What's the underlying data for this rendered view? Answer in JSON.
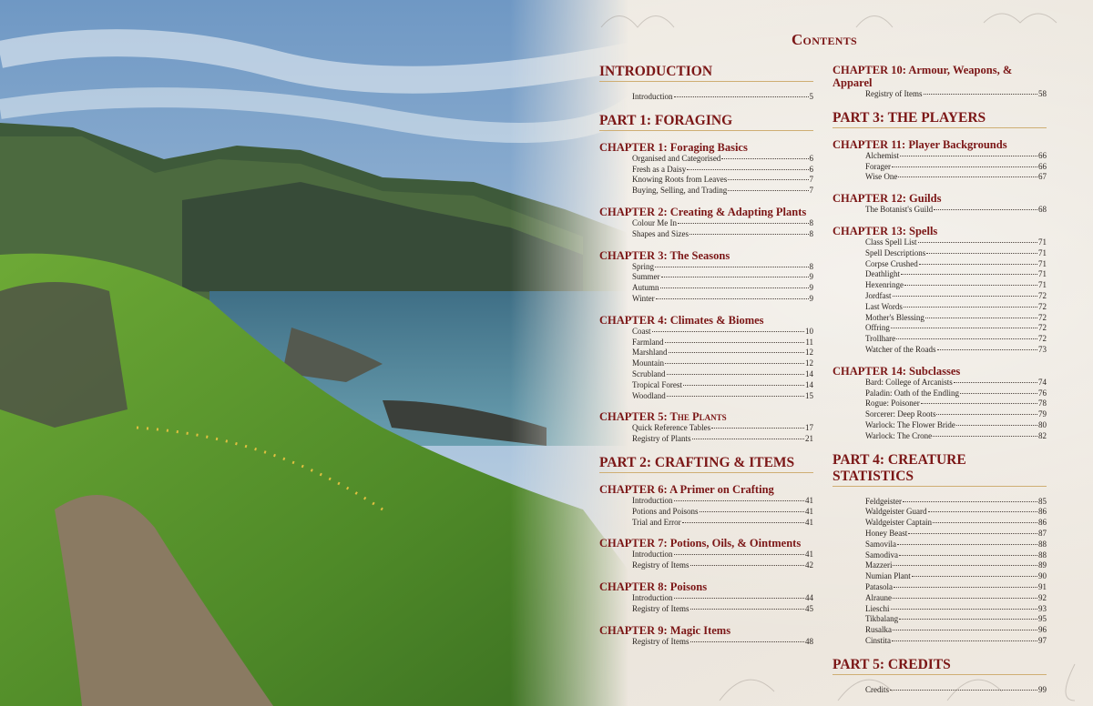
{
  "title": "Contents",
  "columns": [
    [
      {
        "type": "part",
        "title": "INTRODUCTION",
        "entries": [
          {
            "label": "Introduction",
            "page": "5"
          }
        ]
      },
      {
        "type": "part",
        "title": "PART 1: FORAGING",
        "entries": []
      },
      {
        "type": "chapter",
        "title": "CHAPTER 1: Foraging Basics",
        "entries": [
          {
            "label": "Organised and Categorised",
            "page": "6"
          },
          {
            "label": "Fresh as a Daisy",
            "page": "6"
          },
          {
            "label": "Knowing Roots from Leaves",
            "page": "7"
          },
          {
            "label": "Buying, Selling, and Trading",
            "page": "7"
          }
        ]
      },
      {
        "type": "chapter",
        "title": "CHAPTER 2: Creating & Adapting Plants",
        "entries": [
          {
            "label": "Colour Me In",
            "page": "8"
          },
          {
            "label": "Shapes and Sizes",
            "page": "8"
          }
        ]
      },
      {
        "type": "chapter",
        "title": "CHAPTER 3: The Seasons",
        "entries": [
          {
            "label": "Spring",
            "page": "8"
          },
          {
            "label": "Summer",
            "page": "9"
          },
          {
            "label": "Autumn",
            "page": "9"
          },
          {
            "label": "Winter",
            "page": "9"
          }
        ]
      },
      {
        "type": "chapter",
        "title": "CHAPTER 4: Climates & Biomes",
        "entries": [
          {
            "label": "Coast",
            "page": "10"
          },
          {
            "label": "Farmland",
            "page": "11"
          },
          {
            "label": "Marshland",
            "page": "12"
          },
          {
            "label": "Mountain",
            "page": "12"
          },
          {
            "label": "Scrubland",
            "page": "14"
          },
          {
            "label": "Tropical Forest",
            "page": "14"
          },
          {
            "label": "Woodland",
            "page": "15"
          }
        ]
      },
      {
        "type": "chapter",
        "smallcaps": true,
        "title": "CHAPTER 5: The Plants",
        "entries": [
          {
            "label": "Quick Reference Tables",
            "page": "17"
          },
          {
            "label": "Registry of Plants",
            "page": "21"
          }
        ]
      },
      {
        "type": "part",
        "title": "PART 2: CRAFTING & ITEMS",
        "entries": []
      },
      {
        "type": "chapter",
        "title": "CHAPTER 6: A Primer on Crafting",
        "entries": [
          {
            "label": "Introduction",
            "page": "41"
          },
          {
            "label": "Potions and Poisons",
            "page": "41"
          },
          {
            "label": "Trial and Error",
            "page": "41"
          }
        ]
      },
      {
        "type": "chapter",
        "title": "CHAPTER 7: Potions, Oils, & Ointments",
        "entries": [
          {
            "label": "Introduction",
            "page": "41"
          },
          {
            "label": "Registry of Items",
            "page": "42"
          }
        ]
      },
      {
        "type": "chapter",
        "title": "CHAPTER 8: Poisons",
        "entries": [
          {
            "label": "Introduction",
            "page": "44"
          },
          {
            "label": "Registry of Items",
            "page": "45"
          }
        ]
      },
      {
        "type": "chapter",
        "title": "CHAPTER 9: Magic Items",
        "entries": [
          {
            "label": "Registry of Items",
            "page": "48"
          }
        ]
      }
    ],
    [
      {
        "type": "chapter",
        "title": "CHAPTER 10: Armour, Weapons, & Apparel",
        "entries": [
          {
            "label": "Registry of Items",
            "page": "58"
          }
        ]
      },
      {
        "type": "part",
        "title": "PART 3: THE PLAYERS",
        "entries": []
      },
      {
        "type": "chapter",
        "title": "CHAPTER 11: Player Backgrounds",
        "entries": [
          {
            "label": "Alchemist",
            "page": "66"
          },
          {
            "label": "Forager",
            "page": "66"
          },
          {
            "label": "Wise One",
            "page": "67"
          }
        ]
      },
      {
        "type": "chapter",
        "title": "CHAPTER 12: Guilds",
        "entries": [
          {
            "label": "The Botanist's Guild",
            "page": "68"
          }
        ]
      },
      {
        "type": "chapter",
        "title": "CHAPTER 13: Spells",
        "entries": [
          {
            "label": "Class Spell List",
            "page": "71"
          },
          {
            "label": "Spell Descriptions",
            "page": "71"
          },
          {
            "label": "Corpse Crushed",
            "page": "71"
          },
          {
            "label": "Deathlight",
            "page": "71"
          },
          {
            "label": "Hexenringe",
            "page": "71"
          },
          {
            "label": "Jordfast",
            "page": "72"
          },
          {
            "label": "Last Words",
            "page": "72"
          },
          {
            "label": "Mother's Blessing",
            "page": "72"
          },
          {
            "label": "Offring",
            "page": "72"
          },
          {
            "label": "Trollhare",
            "page": "72"
          },
          {
            "label": "Watcher of the Roads",
            "page": "73"
          }
        ]
      },
      {
        "type": "chapter",
        "title": "CHAPTER 14: Subclasses",
        "entries": [
          {
            "label": "Bard: College of Arcanists",
            "page": "74"
          },
          {
            "label": "Paladin: Oath of the Endling",
            "page": "76"
          },
          {
            "label": "Rogue: Poisoner",
            "page": "78"
          },
          {
            "label": "Sorcerer: Deep Roots",
            "page": "79"
          },
          {
            "label": "Warlock: The Flower Bride",
            "page": "80"
          },
          {
            "label": "Warlock: The Crone",
            "page": "82"
          }
        ]
      },
      {
        "type": "part",
        "title": "PART 4: CREATURE STATISTICS",
        "entries": [
          {
            "label": "Feldgeister",
            "page": "85"
          },
          {
            "label": "Waldgeister Guard",
            "page": "86"
          },
          {
            "label": "Waldgeister Captain",
            "page": "86"
          },
          {
            "label": "Honey Beast",
            "page": "87"
          },
          {
            "label": "Samovila",
            "page": "88"
          },
          {
            "label": "Samodiva",
            "page": "88"
          },
          {
            "label": "Mazzeri",
            "page": "89"
          },
          {
            "label": "Numian Plant",
            "page": "90"
          },
          {
            "label": "Patasola",
            "page": "91"
          },
          {
            "label": "Alraune",
            "page": "92"
          },
          {
            "label": "Lieschi",
            "page": "93"
          },
          {
            "label": "Tikbalang",
            "page": "95"
          },
          {
            "label": "Rusalka",
            "page": "96"
          },
          {
            "label": "Cinstita",
            "page": "97"
          }
        ]
      },
      {
        "type": "part",
        "title": "PART 5: CREDITS",
        "entries": [
          {
            "label": "Credits",
            "page": "99"
          }
        ]
      }
    ]
  ],
  "colors": {
    "heading": "#7b1616",
    "rule": "#cfae73",
    "parchment": "#efeae2"
  }
}
